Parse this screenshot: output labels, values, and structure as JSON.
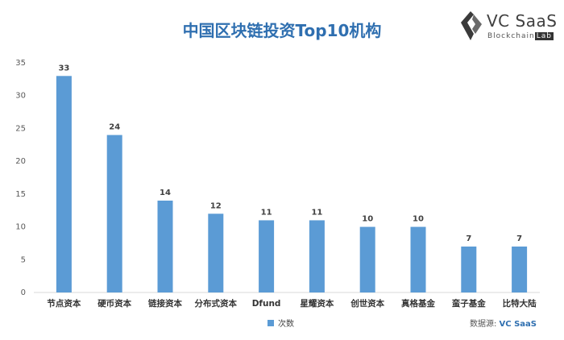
{
  "header": {
    "title": "中国区块链投资Top10机构"
  },
  "brand": {
    "name": "VC SaaS",
    "sub_prefix": "Blockchain",
    "sub_lab": "Lab",
    "logo_icon": "vc-saas-logo-icon"
  },
  "footer": {
    "source_label": "数据源: ",
    "source_brand": "VC SaaS"
  },
  "colors": {
    "bar": "#5b9bd5",
    "title": "#2f6fb0",
    "axis": "#d9d9d9"
  },
  "chart_data": {
    "type": "bar",
    "title": "中国区块链投资Top10机构",
    "xlabel": "",
    "ylabel": "",
    "categories": [
      "节点资本",
      "硬币资本",
      "链接资本",
      "分布式资本",
      "Dfund",
      "星耀资本",
      "创世资本",
      "真格基金",
      "蛮子基金",
      "比特大陆"
    ],
    "series": [
      {
        "name": "次数",
        "values": [
          33,
          24,
          14,
          12,
          11,
          11,
          10,
          10,
          7,
          7
        ]
      }
    ],
    "ylim": [
      0,
      35
    ],
    "yticks": [
      0,
      5,
      10,
      15,
      20,
      25,
      30,
      35
    ],
    "grid": false,
    "legend": "bottom-center",
    "data_labels": true
  }
}
